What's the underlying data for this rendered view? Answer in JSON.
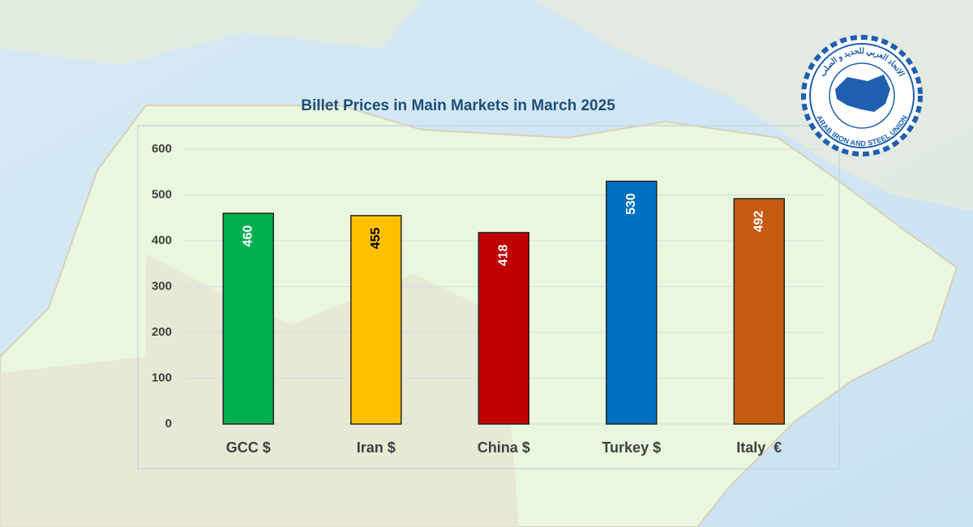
{
  "chart_data": {
    "type": "bar",
    "title": "Billet Prices in Main Markets in March 2025",
    "categories": [
      "GCC $",
      "Iran $",
      "China $",
      "Turkey $",
      "Italy  €"
    ],
    "values": [
      460,
      455,
      418,
      530,
      492
    ],
    "colors": [
      "#00b050",
      "#ffc000",
      "#c00000",
      "#0070c0",
      "#c55a11"
    ],
    "value_label_colors": [
      "#ffffff",
      "#000000",
      "#ffffff",
      "#ffffff",
      "#ffffff"
    ],
    "ylim": [
      0,
      600
    ],
    "yticks": [
      0,
      100,
      200,
      300,
      400,
      500,
      600
    ],
    "grid": true
  },
  "logo": {
    "english": "ARAB IRON AND STEEL UNION",
    "arabic": "الاتحاد العربي للحديد و الصلب"
  }
}
